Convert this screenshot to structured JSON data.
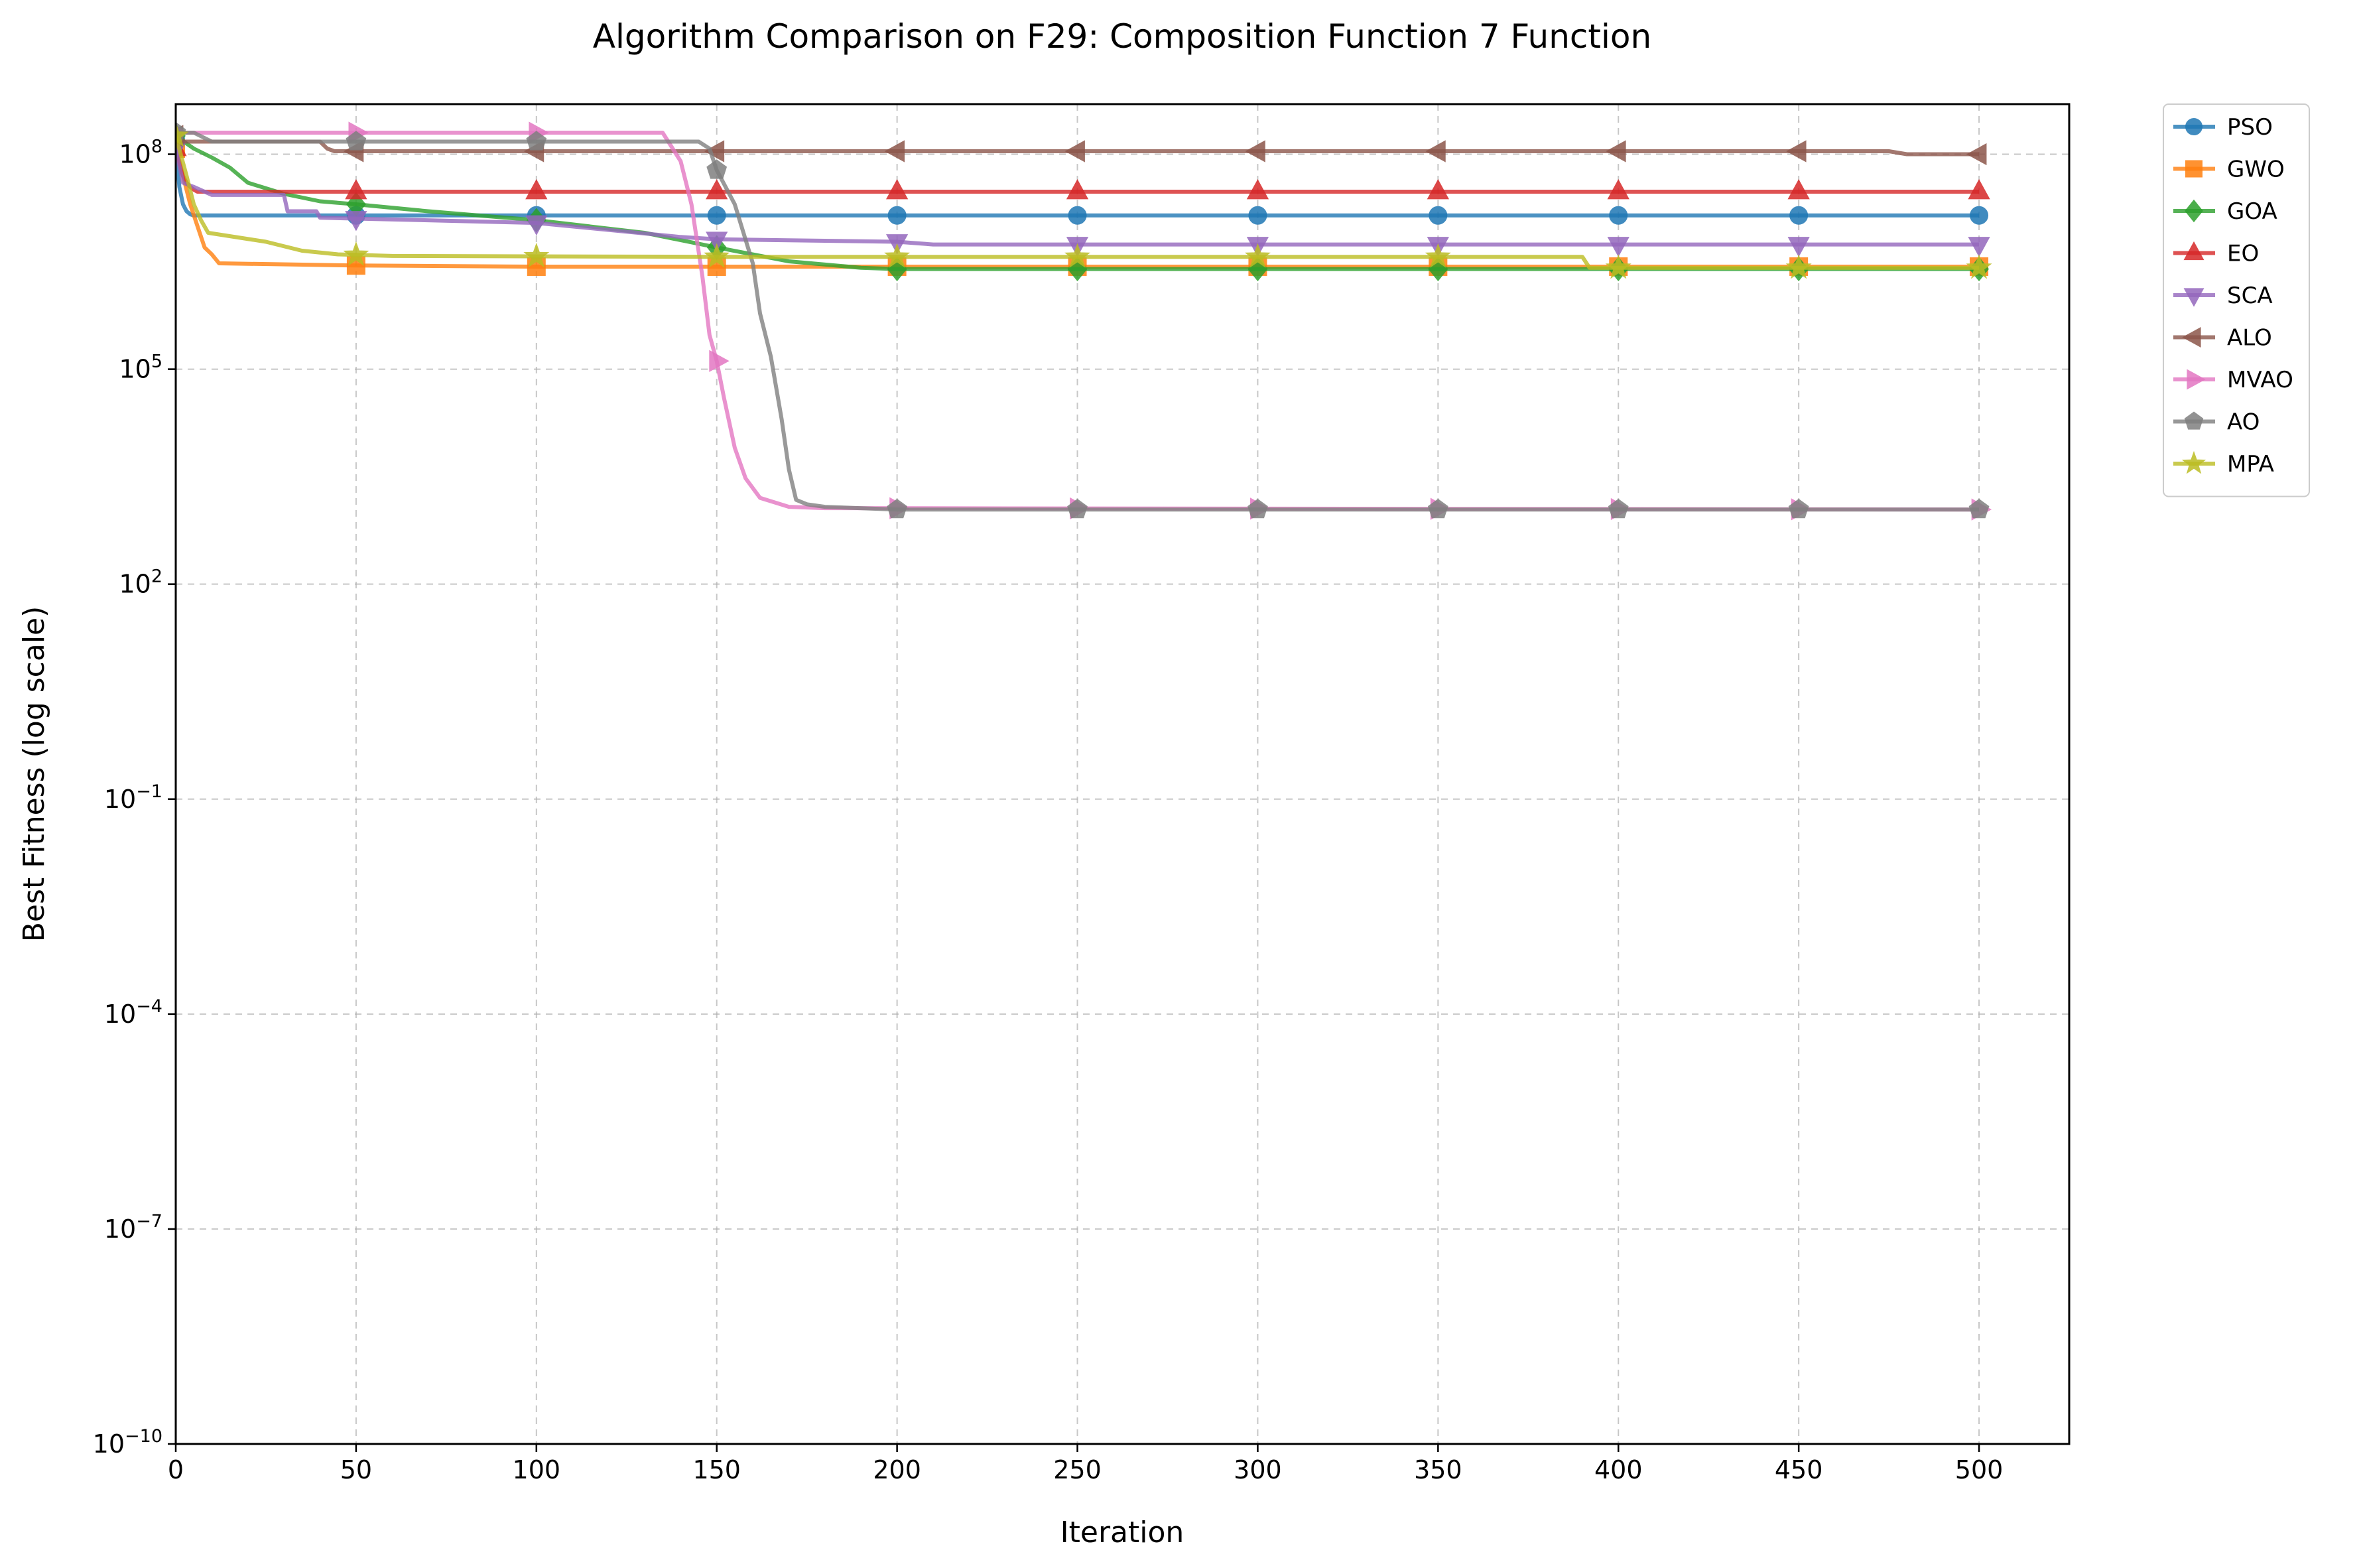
{
  "chart_data": {
    "type": "line",
    "title": "Algorithm Comparison on F29: Composition Function 7 Function",
    "xlabel": "Iteration",
    "ylabel": "Best Fitness (log scale)",
    "xlim": [
      0,
      525
    ],
    "ylim": [
      1e-10,
      500000000.0
    ],
    "yscale": "log",
    "grid": true,
    "legend_position": "outside-top-right",
    "x_ticks": [
      0,
      50,
      100,
      150,
      200,
      250,
      300,
      350,
      400,
      450,
      500
    ],
    "x_tick_labels": [
      "0",
      "50",
      "100",
      "150",
      "200",
      "250",
      "300",
      "350",
      "400",
      "450",
      "500"
    ],
    "y_ticks": [
      1e-10,
      1e-07,
      0.0001,
      0.1,
      100.0,
      100000.0,
      100000000.0
    ],
    "y_tick_labels": [
      {
        "base": "10",
        "exp": "−10"
      },
      {
        "base": "10",
        "exp": "−7"
      },
      {
        "base": "10",
        "exp": "−4"
      },
      {
        "base": "10",
        "exp": "−1"
      },
      {
        "base": "10",
        "exp": "2"
      },
      {
        "base": "10",
        "exp": "5"
      },
      {
        "base": "10",
        "exp": "8"
      }
    ],
    "marker_every": 50,
    "series": [
      {
        "name": "PSO",
        "color": "#1f77b4",
        "marker": "circle",
        "points": [
          [
            0,
            160000000.0
          ],
          [
            1,
            35000000.0
          ],
          [
            2,
            20000000.0
          ],
          [
            3,
            16000000.0
          ],
          [
            4,
            14500000.0
          ],
          [
            5,
            14000000.0
          ],
          [
            500,
            14000000.0
          ]
        ]
      },
      {
        "name": "GWO",
        "color": "#ff7f0e",
        "marker": "square",
        "points": [
          [
            0,
            120000000.0
          ],
          [
            2,
            50000000.0
          ],
          [
            4,
            20000000.0
          ],
          [
            6,
            10000000.0
          ],
          [
            8,
            5000000.0
          ],
          [
            10,
            4000000.0
          ],
          [
            12,
            3000000.0
          ],
          [
            50,
            2800000.0
          ],
          [
            100,
            2700000.0
          ],
          [
            500,
            2700000.0
          ]
        ]
      },
      {
        "name": "GOA",
        "color": "#2ca02c",
        "marker": "diamond",
        "points": [
          [
            0,
            180000000.0
          ],
          [
            5,
            120000000.0
          ],
          [
            10,
            90000000.0
          ],
          [
            15,
            65000000.0
          ],
          [
            20,
            40000000.0
          ],
          [
            30,
            28000000.0
          ],
          [
            40,
            22000000.0
          ],
          [
            50,
            20000000.0
          ],
          [
            70,
            16000000.0
          ],
          [
            100,
            12000000.0
          ],
          [
            130,
            8000000.0
          ],
          [
            150,
            5000000.0
          ],
          [
            170,
            3200000.0
          ],
          [
            190,
            2600000.0
          ],
          [
            200,
            2500000.0
          ],
          [
            500,
            2500000.0
          ]
        ]
      },
      {
        "name": "EO",
        "color": "#d62728",
        "marker": "triangle-up",
        "points": [
          [
            0,
            120000000.0
          ],
          [
            1,
            80000000.0
          ],
          [
            2,
            50000000.0
          ],
          [
            3,
            40000000.0
          ],
          [
            4,
            35000000.0
          ],
          [
            5,
            32000000.0
          ],
          [
            6,
            30000000.0
          ],
          [
            500,
            30000000.0
          ]
        ]
      },
      {
        "name": "SCA",
        "color": "#9467bd",
        "marker": "triangle-down",
        "points": [
          [
            0,
            120000000.0
          ],
          [
            2,
            40000000.0
          ],
          [
            5,
            35000000.0
          ],
          [
            10,
            27000000.0
          ],
          [
            30,
            27000000.0
          ],
          [
            31,
            16000000.0
          ],
          [
            39,
            16000000.0
          ],
          [
            40,
            13000000.0
          ],
          [
            100,
            11000000.0
          ],
          [
            140,
            7000000.0
          ],
          [
            150,
            6500000.0
          ],
          [
            200,
            6000000.0
          ],
          [
            210,
            5500000.0
          ],
          [
            500,
            5500000.0
          ]
        ]
      },
      {
        "name": "ALO",
        "color": "#8c564b",
        "marker": "triangle-left",
        "points": [
          [
            0,
            180000000.0
          ],
          [
            2,
            150000000.0
          ],
          [
            40,
            150000000.0
          ],
          [
            42,
            120000000.0
          ],
          [
            44,
            110000000.0
          ],
          [
            475,
            110000000.0
          ],
          [
            480,
            100000000.0
          ],
          [
            500,
            100000000.0
          ]
        ]
      },
      {
        "name": "MVAO",
        "color": "#e377c2",
        "marker": "triangle-right",
        "points": [
          [
            0,
            200000000.0
          ],
          [
            135,
            200000000.0
          ],
          [
            140,
            80000000.0
          ],
          [
            143,
            20000000.0
          ],
          [
            146,
            2000000.0
          ],
          [
            148,
            300000.0
          ],
          [
            150,
            130000.0
          ],
          [
            152,
            40000.0
          ],
          [
            155,
            8000.0
          ],
          [
            158,
            3000.0
          ],
          [
            162,
            1600.0
          ],
          [
            170,
            1200.0
          ],
          [
            180,
            1150.0
          ],
          [
            500,
            1100.0
          ]
        ]
      },
      {
        "name": "AO",
        "color": "#7f7f7f",
        "marker": "pentagon",
        "points": [
          [
            0,
            200000000.0
          ],
          [
            5,
            200000000.0
          ],
          [
            10,
            150000000.0
          ],
          [
            145,
            150000000.0
          ],
          [
            148,
            120000000.0
          ],
          [
            150,
            60000000.0
          ],
          [
            155,
            20000000.0
          ],
          [
            160,
            3000000.0
          ],
          [
            162,
            600000.0
          ],
          [
            165,
            150000.0
          ],
          [
            168,
            20000.0
          ],
          [
            170,
            4000.0
          ],
          [
            172,
            1500.0
          ],
          [
            175,
            1300.0
          ],
          [
            180,
            1200.0
          ],
          [
            200,
            1100.0
          ],
          [
            500,
            1100.0
          ]
        ]
      },
      {
        "name": "MPA",
        "color": "#bcbd22",
        "marker": "star",
        "points": [
          [
            0,
            180000000.0
          ],
          [
            3,
            50000000.0
          ],
          [
            5,
            20000000.0
          ],
          [
            7,
            12000000.0
          ],
          [
            9,
            8000000.0
          ],
          [
            25,
            6000000.0
          ],
          [
            35,
            4500000.0
          ],
          [
            45,
            4000000.0
          ],
          [
            60,
            3800000.0
          ],
          [
            150,
            3700000.0
          ],
          [
            200,
            3700000.0
          ],
          [
            390,
            3700000.0
          ],
          [
            392,
            2600000.0
          ],
          [
            500,
            2600000.0
          ]
        ]
      }
    ]
  }
}
